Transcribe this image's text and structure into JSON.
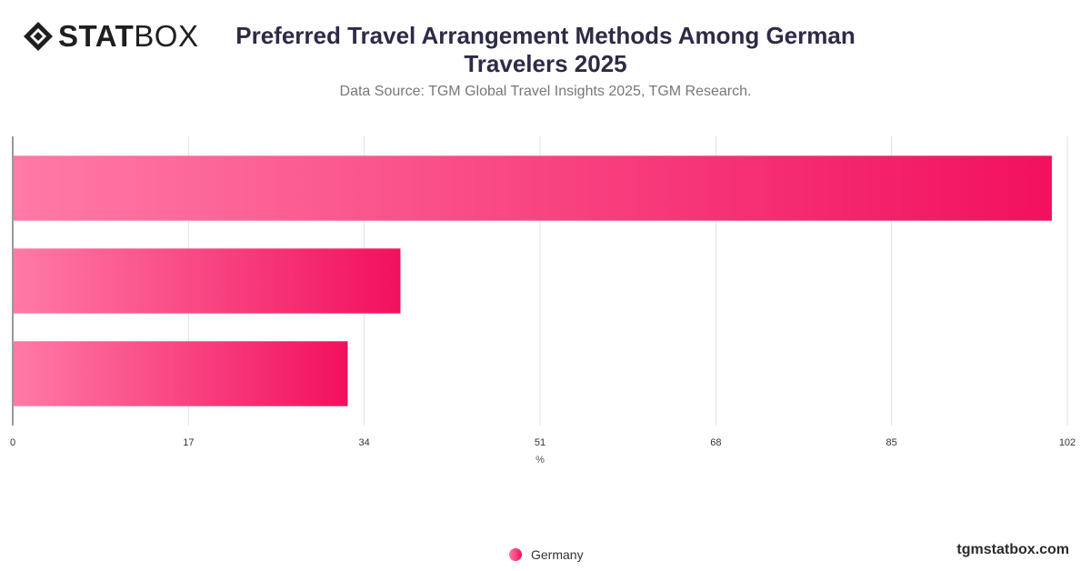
{
  "brand": {
    "logo_bold": "STAT",
    "logo_light": "BOX",
    "watermark": "tgmstatbox.com",
    "logo_icon": "diamond-logo-icon"
  },
  "header": {
    "title": "Preferred Travel Arrangement Methods Among German Travelers 2025",
    "subtitle": "Data Source: TGM Global Travel Insights 2025, TGM Research."
  },
  "legend": {
    "items": [
      {
        "label": "Germany",
        "color": "#f2105f"
      }
    ]
  },
  "colors": {
    "bar_start": "#ff7aa6",
    "bar_end": "#f2105f",
    "grid": "#e0e0e0",
    "axis": "#333333"
  },
  "chart_data": {
    "type": "bar",
    "orientation": "horizontal",
    "categories": [
      "",
      "",
      ""
    ],
    "series": [
      {
        "name": "Germany",
        "values": [
          100.5,
          37.5,
          32.4
        ]
      }
    ],
    "xlabel": "%",
    "ylabel": "",
    "xlim": [
      0,
      102
    ],
    "xticks": [
      0,
      17,
      34,
      51,
      68,
      85,
      102
    ],
    "grid": true,
    "legend_position": "bottom"
  }
}
